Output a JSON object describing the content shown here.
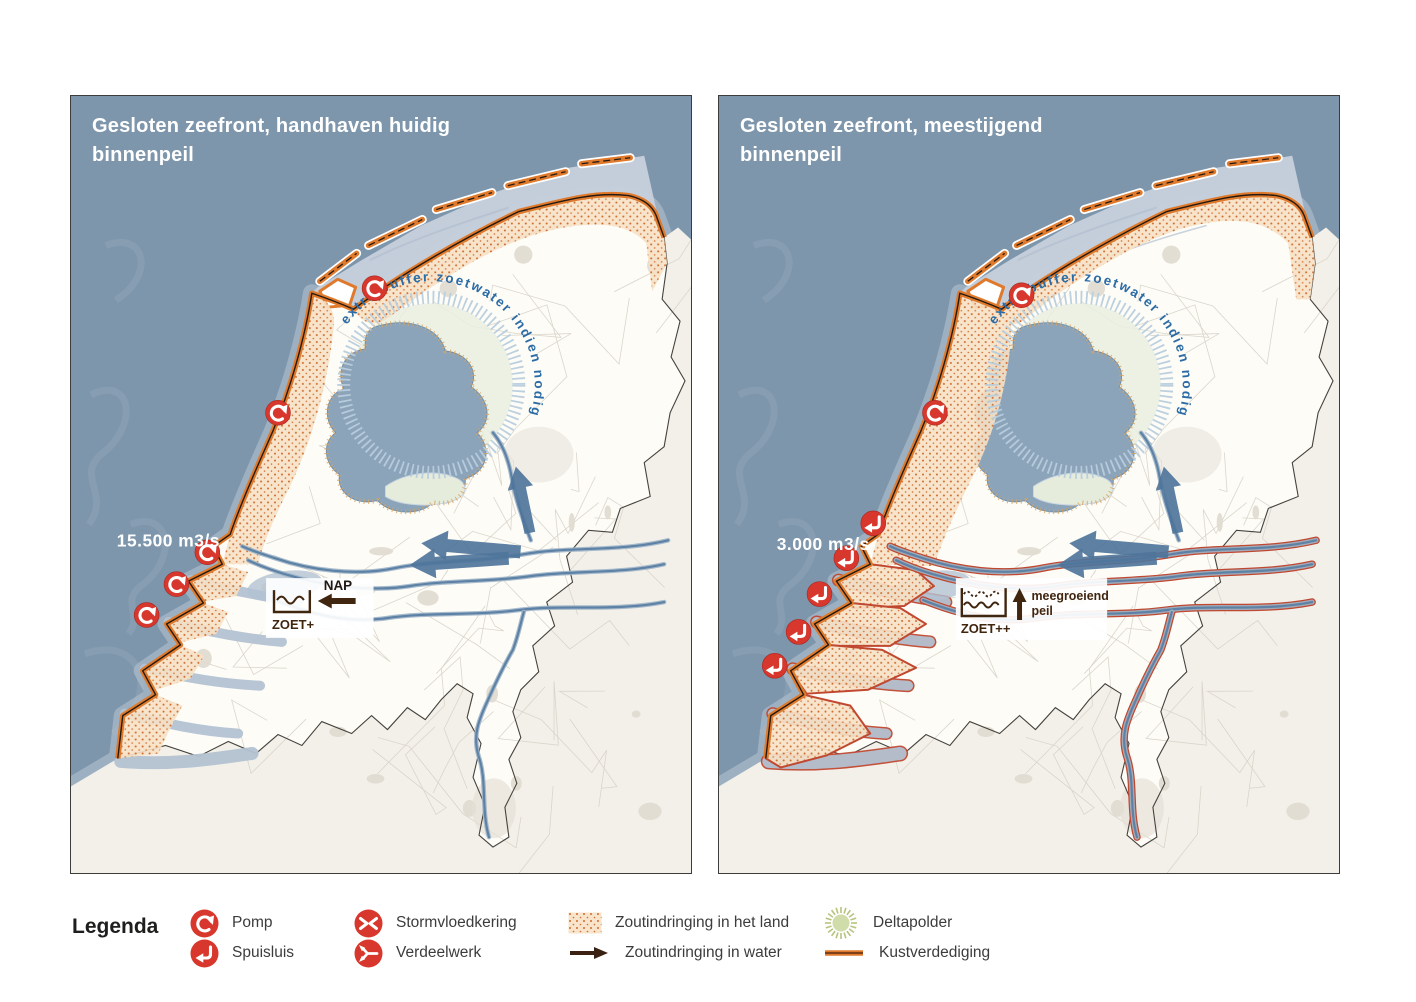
{
  "panels": [
    {
      "key": "a",
      "title": "Gesloten zeefront, handhaven huidig binnenpeil",
      "flow_label": "15.500 m3/s",
      "buffer_ring_label": "extra buffer zoetwater indien nodig",
      "level_indicator": {
        "reference_label": "NAP",
        "basin_label": "ZOET+",
        "note": ""
      },
      "scenario": "current-level"
    },
    {
      "key": "b",
      "title": "Gesloten zeefront, meestijgend binnenpeil",
      "flow_label": "3.000 m3/s",
      "buffer_ring_label": "extra buffer zoetwater indien nodig",
      "level_indicator": {
        "reference_label": "",
        "basin_label": "ZOET++",
        "note": "meegroeiend peil"
      },
      "scenario": "rising-level"
    }
  ],
  "legend": {
    "title": "Legenda",
    "items": [
      {
        "icon": "pomp",
        "label": "Pomp"
      },
      {
        "icon": "spuisluis",
        "label": "Spuisluis"
      },
      {
        "icon": "stormvloedkering",
        "label": "Stormvloedkering"
      },
      {
        "icon": "verdeelwerk",
        "label": "Verdeelwerk"
      },
      {
        "icon": "salt-land",
        "label": "Zoutindringing in het land"
      },
      {
        "icon": "salt-water",
        "label": "Zoutindringing in water"
      },
      {
        "icon": "deltapolder",
        "label": "Deltapolder"
      },
      {
        "icon": "kustverdediging",
        "label": "Kustverdediging"
      }
    ]
  },
  "colors": {
    "sea": "#7e96ac",
    "sea_streak": "#8ea4b7",
    "shallow": "#bcc9d6",
    "wadden": "#c7d1dc",
    "land_outside": "#f3f0ea",
    "land_nl": "#fdfcf7",
    "road": "#d7d1c6",
    "city": "#e0dacf",
    "border": "#45413c",
    "coast_orange": "#df7a2d",
    "coast_core": "#241a12",
    "salt_bg": "#f7e2c6",
    "salt_dot": "#cf6a2e",
    "river_case": "#9fb4c6",
    "river_core": "#5d82a6",
    "river_red": "#c04830",
    "arrow_blue": "#4f759b",
    "accent_red": "#d7372c",
    "buffer_green": "#e9eee1",
    "buffer_ring": "#b8cddd",
    "buffer_text": "#2b6ba6",
    "lake": "#8ca4ba",
    "sand_rim": "#d8a35f",
    "pictogram_brown": "#40250f",
    "deltapolder_green": "#cfdaa6",
    "deltapolder_ray": "#b6c47e",
    "legend_text": "#3c3c3b"
  }
}
